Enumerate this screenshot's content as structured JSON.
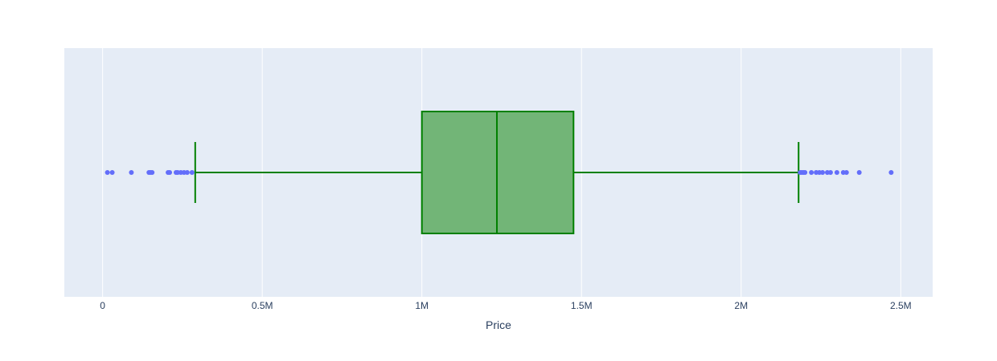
{
  "chart_data": {
    "type": "box",
    "orientation": "horizontal",
    "xlabel": "Price",
    "xlim": [
      -120000,
      2600000
    ],
    "x_ticks": [
      {
        "value": 0,
        "label": "0"
      },
      {
        "value": 500000,
        "label": "0.5M"
      },
      {
        "value": 1000000,
        "label": "1M"
      },
      {
        "value": 1500000,
        "label": "1.5M"
      },
      {
        "value": 2000000,
        "label": "2M"
      },
      {
        "value": 2500000,
        "label": "2.5M"
      }
    ],
    "grid": true,
    "series": [
      {
        "box": {
          "lower_fence": 290000,
          "q1": 1000000,
          "median": 1235000,
          "q3": 1475000,
          "upper_fence": 2180000
        },
        "outliers": [
          15000,
          30000,
          90000,
          145000,
          150000,
          155000,
          205000,
          210000,
          230000,
          235000,
          245000,
          255000,
          265000,
          280000,
          2185000,
          2190000,
          2195000,
          2200000,
          2220000,
          2235000,
          2245000,
          2255000,
          2270000,
          2280000,
          2300000,
          2320000,
          2330000,
          2370000,
          2470000
        ],
        "box_color": "#008000",
        "fill_color": "#72b577",
        "outlier_color": "#636efa"
      }
    ],
    "colors": {
      "plot_background": "#e5ecf6",
      "grid": "#ffffff",
      "text": "#2a3f5f"
    }
  }
}
